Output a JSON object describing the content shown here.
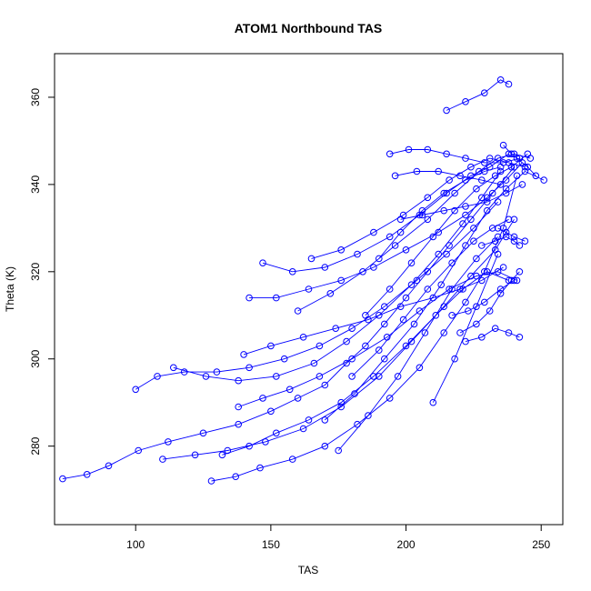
{
  "chart_data": {
    "type": "line",
    "title": "ATOM1 Northbound TAS",
    "xlabel": "TAS",
    "ylabel": "Theta (K)",
    "xlim": [
      70,
      258
    ],
    "ylim": [
      262,
      370
    ],
    "xticks": [
      100,
      150,
      200,
      250
    ],
    "yticks": [
      280,
      300,
      320,
      340,
      360
    ],
    "grid": false,
    "series_color": "#0000ff",
    "markers": "open-circle",
    "series": [
      {
        "x": [
          73,
          82,
          90,
          101,
          112,
          125,
          138,
          150,
          160,
          170,
          178,
          185,
          192,
          200,
          208,
          216,
          224,
          232,
          240
        ],
        "y": [
          272.5,
          273.5,
          275.5,
          279,
          281,
          283,
          285,
          288,
          291,
          294,
          299,
          303,
          308,
          314,
          320,
          326,
          332,
          338,
          344
        ]
      },
      {
        "x": [
          128,
          137,
          146,
          158,
          170,
          182,
          194,
          205,
          214,
          222,
          229,
          236,
          241
        ],
        "y": [
          272,
          273,
          275,
          277,
          280,
          285,
          291,
          298,
          306,
          313,
          320,
          330,
          342
        ]
      },
      {
        "x": [
          100,
          108,
          118,
          130,
          142,
          155,
          168,
          180,
          192,
          204,
          215,
          225,
          234
        ],
        "y": [
          293,
          296,
          297,
          297,
          298,
          300,
          303,
          307,
          312,
          318,
          324,
          330,
          336
        ]
      },
      {
        "x": [
          114,
          126,
          138,
          152,
          166,
          178,
          190,
          202,
          212,
          221,
          228,
          235
        ],
        "y": [
          298,
          296,
          295,
          296,
          299,
          304,
          310,
          317,
          324,
          331,
          337,
          343
        ]
      },
      {
        "x": [
          110,
          122,
          134,
          148,
          162,
          176,
          190,
          202,
          214,
          224,
          233,
          240
        ],
        "y": [
          277,
          278,
          279,
          281,
          284,
          289,
          296,
          304,
          312,
          319,
          325,
          332
        ]
      },
      {
        "x": [
          132,
          142,
          152,
          164,
          176,
          188,
          200,
          211,
          221,
          230,
          238
        ],
        "y": [
          278,
          280,
          283,
          286,
          290,
          296,
          303,
          310,
          316,
          320,
          318
        ]
      },
      {
        "x": [
          138,
          147,
          157,
          168,
          180,
          193,
          205,
          216,
          226,
          234,
          241
        ],
        "y": [
          289,
          291,
          293,
          296,
          300,
          305,
          311,
          316,
          319,
          320,
          318
        ]
      },
      {
        "x": [
          140,
          150,
          162,
          174,
          186,
          198,
          210,
          220,
          228,
          236
        ],
        "y": [
          301,
          303,
          305,
          307,
          309,
          312,
          314,
          316,
          318,
          321
        ]
      },
      {
        "x": [
          142,
          152,
          164,
          176,
          188,
          200,
          212,
          222,
          230,
          237,
          243
        ],
        "y": [
          314,
          314,
          316,
          318,
          321,
          325,
          329,
          333,
          337,
          341,
          345
        ]
      },
      {
        "x": [
          147,
          158,
          170,
          182,
          194,
          205,
          215,
          224,
          231,
          238
        ],
        "y": [
          322,
          320,
          321,
          324,
          328,
          333,
          338,
          342,
          344,
          347
        ]
      },
      {
        "x": [
          160,
          172,
          184,
          196,
          208,
          218,
          227,
          234,
          240,
          246
        ],
        "y": [
          311,
          315,
          320,
          326,
          332,
          338,
          343,
          346,
          347,
          346
        ]
      },
      {
        "x": [
          165,
          176,
          188,
          199,
          208,
          216,
          224,
          231,
          238,
          244
        ],
        "y": [
          323,
          325,
          329,
          333,
          337,
          341,
          344,
          346,
          345,
          344
        ]
      },
      {
        "x": [
          170,
          181,
          192,
          203,
          213,
          222,
          230,
          237,
          244,
          251
        ],
        "y": [
          286,
          292,
          300,
          308,
          317,
          326,
          334,
          339,
          343,
          341
        ]
      },
      {
        "x": [
          175,
          186,
          197,
          207,
          217,
          226,
          234
        ],
        "y": [
          279,
          287,
          296,
          306,
          316,
          323,
          328
        ]
      },
      {
        "x": [
          180,
          190,
          199,
          208,
          217,
          225,
          232,
          238
        ],
        "y": [
          296,
          302,
          309,
          316,
          322,
          327,
          330,
          332
        ]
      },
      {
        "x": [
          185,
          194,
          202,
          210,
          218,
          226,
          233,
          239,
          245
        ],
        "y": [
          310,
          316,
          322,
          328,
          334,
          339,
          342,
          344,
          347
        ]
      },
      {
        "x": [
          190,
          198,
          206,
          214,
          222,
          229,
          235
        ],
        "y": [
          323,
          329,
          334,
          338,
          341,
          343,
          344
        ]
      },
      {
        "x": [
          194,
          201,
          208,
          215,
          222,
          229,
          236,
          242
        ],
        "y": [
          347,
          348,
          348,
          347,
          346,
          345,
          345,
          346
        ]
      },
      {
        "x": [
          196,
          204,
          212,
          220,
          228,
          235
        ],
        "y": [
          342,
          343,
          343,
          342,
          341,
          340
        ]
      },
      {
        "x": [
          198,
          206,
          214,
          222,
          230,
          237,
          243
        ],
        "y": [
          332,
          333,
          334,
          335,
          336,
          338,
          340
        ]
      },
      {
        "x": [
          210,
          218,
          226,
          234
        ],
        "y": [
          290,
          300,
          312,
          324
        ]
      },
      {
        "x": [
          215,
          222,
          229,
          235,
          238
        ],
        "y": [
          357,
          359,
          361,
          364,
          363
        ]
      },
      {
        "x": [
          220,
          226,
          231,
          235,
          239,
          242
        ],
        "y": [
          306,
          308,
          311,
          315,
          318,
          320
        ]
      },
      {
        "x": [
          222,
          228,
          233,
          238,
          242
        ],
        "y": [
          304,
          305,
          307,
          306,
          305
        ]
      },
      {
        "x": [
          217,
          223,
          229,
          235,
          240
        ],
        "y": [
          310,
          311,
          313,
          316,
          318
        ]
      },
      {
        "x": [
          228,
          233,
          237,
          240,
          242
        ],
        "y": [
          326,
          327,
          328,
          327,
          326
        ]
      },
      {
        "x": [
          234,
          237,
          240,
          244
        ],
        "y": [
          330,
          329,
          328,
          327
        ]
      },
      {
        "x": [
          236,
          239,
          241,
          245,
          248
        ],
        "y": [
          349,
          347,
          346,
          344,
          342
        ]
      }
    ]
  }
}
